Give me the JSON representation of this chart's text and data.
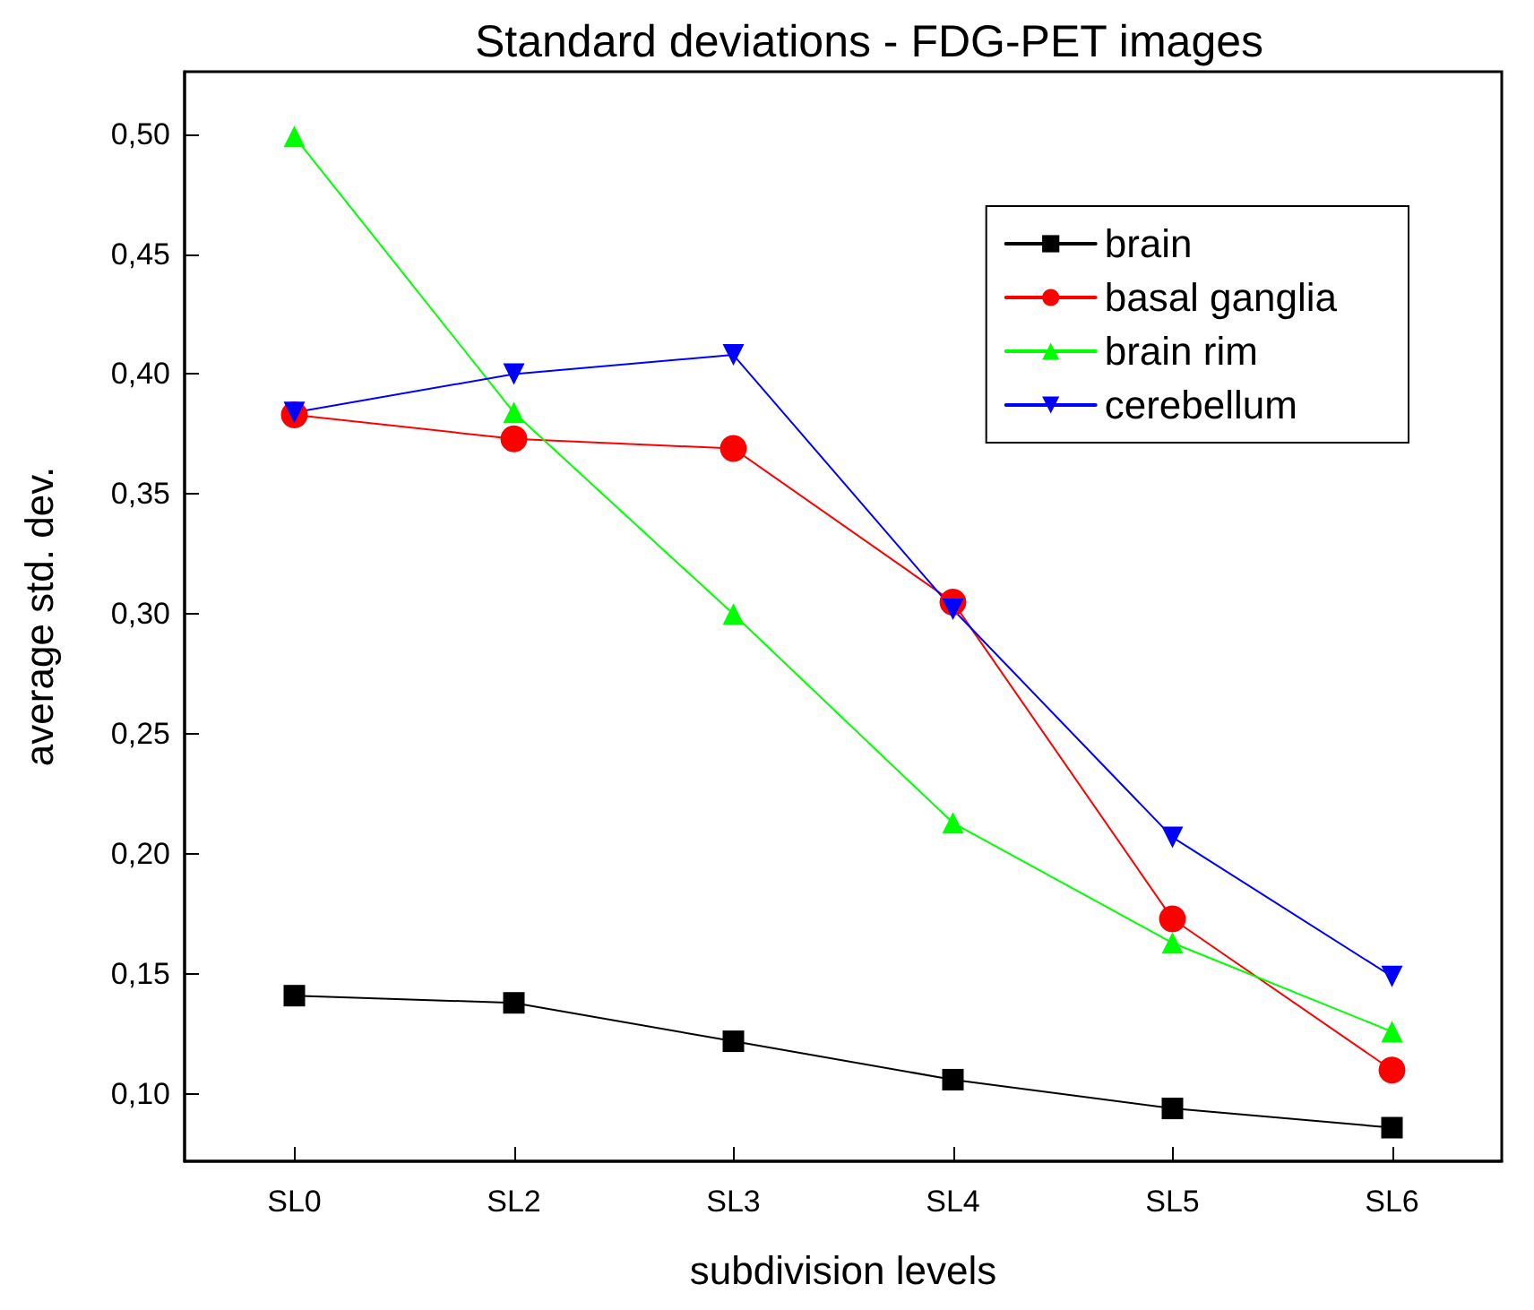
{
  "chart_data": {
    "type": "line",
    "title": "Standard deviations - FDG-PET images",
    "xlabel": "subdivision levels",
    "ylabel": "average std. dev.",
    "categories": [
      "SL0",
      "SL2",
      "SL3",
      "SL4",
      "SL5",
      "SL6"
    ],
    "series": [
      {
        "name": "brain",
        "color": "#000000",
        "marker": "square",
        "values": [
          0.141,
          0.138,
          0.122,
          0.106,
          0.094,
          0.086
        ]
      },
      {
        "name": "basal ganglia",
        "color": "#ff0000",
        "marker": "circle",
        "values": [
          0.383,
          0.373,
          0.369,
          0.305,
          0.173,
          0.11
        ]
      },
      {
        "name": "brain rim",
        "color": "#00ff00",
        "marker": "triangle",
        "values": [
          0.499,
          0.384,
          0.3,
          0.213,
          0.163,
          0.126
        ]
      },
      {
        "name": "cerebellum",
        "color": "#0000ff",
        "marker": "triangle-down",
        "values": [
          0.384,
          0.4,
          0.408,
          0.302,
          0.207,
          0.149
        ]
      }
    ],
    "ylim": [
      0.072,
      0.526
    ],
    "yticks": [
      {
        "value": 0.1,
        "label": "0,10"
      },
      {
        "value": 0.15,
        "label": "0,15"
      },
      {
        "value": 0.2,
        "label": "0,20"
      },
      {
        "value": 0.25,
        "label": "0,25"
      },
      {
        "value": 0.3,
        "label": "0,30"
      },
      {
        "value": 0.35,
        "label": "0,35"
      },
      {
        "value": 0.4,
        "label": "0,40"
      },
      {
        "value": 0.45,
        "label": "0,45"
      },
      {
        "value": 0.5,
        "label": "0,50"
      }
    ],
    "grid": false,
    "legend": "top right",
    "line_style": "solid"
  }
}
